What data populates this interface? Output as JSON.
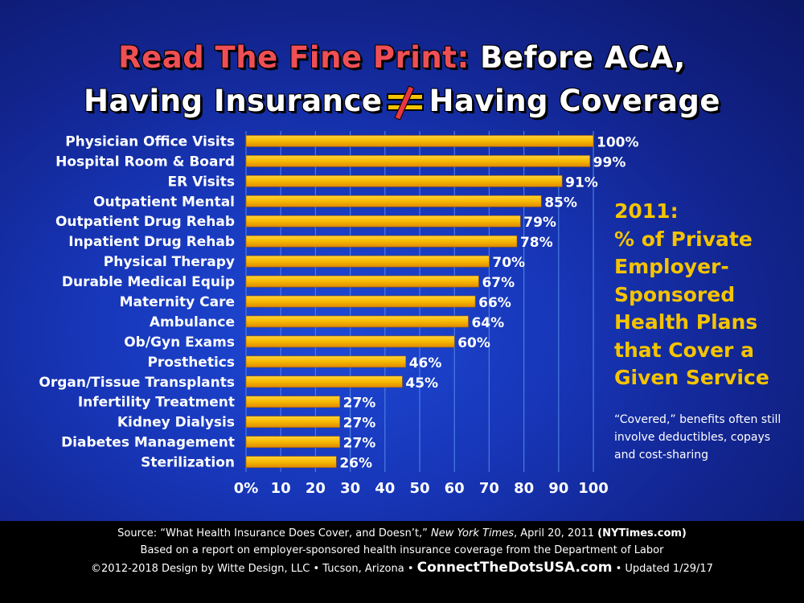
{
  "title": {
    "line1_highlight": "Read The Fine Print:",
    "line1_rest": "Before ACA,",
    "line2_left": "Having Insurance",
    "line2_right": "Having Coverage"
  },
  "side_title": [
    "2011:",
    "% of Private",
    "Employer-",
    "Sponsored",
    "Health Plans",
    "that Cover a",
    "Given Service"
  ],
  "side_note": "“Covered,” benefits often still involve deductibles, copays and cost-sharing",
  "chart_data": {
    "type": "bar",
    "orientation": "horizontal",
    "categories": [
      "Physician Office Visits",
      "Hospital Room & Board",
      "ER Visits",
      "Outpatient Mental",
      "Outpatient Drug Rehab",
      "Inpatient Drug Rehab",
      "Physical Therapy",
      "Durable Medical Equip",
      "Maternity Care",
      "Ambulance",
      "Ob/Gyn Exams",
      "Prosthetics",
      "Organ/Tissue Transplants",
      "Infertility Treatment",
      "Kidney Dialysis",
      "Diabetes Management",
      "Sterilization"
    ],
    "values": [
      100,
      99,
      91,
      85,
      79,
      78,
      70,
      67,
      66,
      64,
      60,
      46,
      45,
      27,
      27,
      27,
      26
    ],
    "value_labels": [
      "100%",
      "99%",
      "91%",
      "85%",
      "79%",
      "78%",
      "70%",
      "67%",
      "66%",
      "64%",
      "60%",
      "46%",
      "45%",
      "27%",
      "27%",
      "27%",
      "26%"
    ],
    "xlim": [
      0,
      100
    ],
    "xticks": [
      "0%",
      "10",
      "20",
      "30",
      "40",
      "50",
      "60",
      "70",
      "80",
      "90",
      "100"
    ],
    "grid": true,
    "bar_color": "#f5b800",
    "grid_color": "#4a7de0"
  },
  "footer": {
    "source_prefix": "Source: “What Health Insurance Does Cover, and Doesn’t,” ",
    "source_pub": "New York Times",
    "source_date": ", April 20, 2011 ",
    "source_site": "(NYTimes.com)",
    "line2": "Based on a report on employer-sponsored health insurance coverage from the Department of Labor",
    "copyright": "©2012-2018 Design by Witte Design, LLC • Tucson, Arizona • ",
    "site": "ConnectTheDotsUSA.com",
    "updated": " • Updated 1/29/17"
  },
  "colors": {
    "title_highlight": "#ef4f54",
    "accent_yellow": "#f5c400",
    "background": "#1736b8"
  }
}
